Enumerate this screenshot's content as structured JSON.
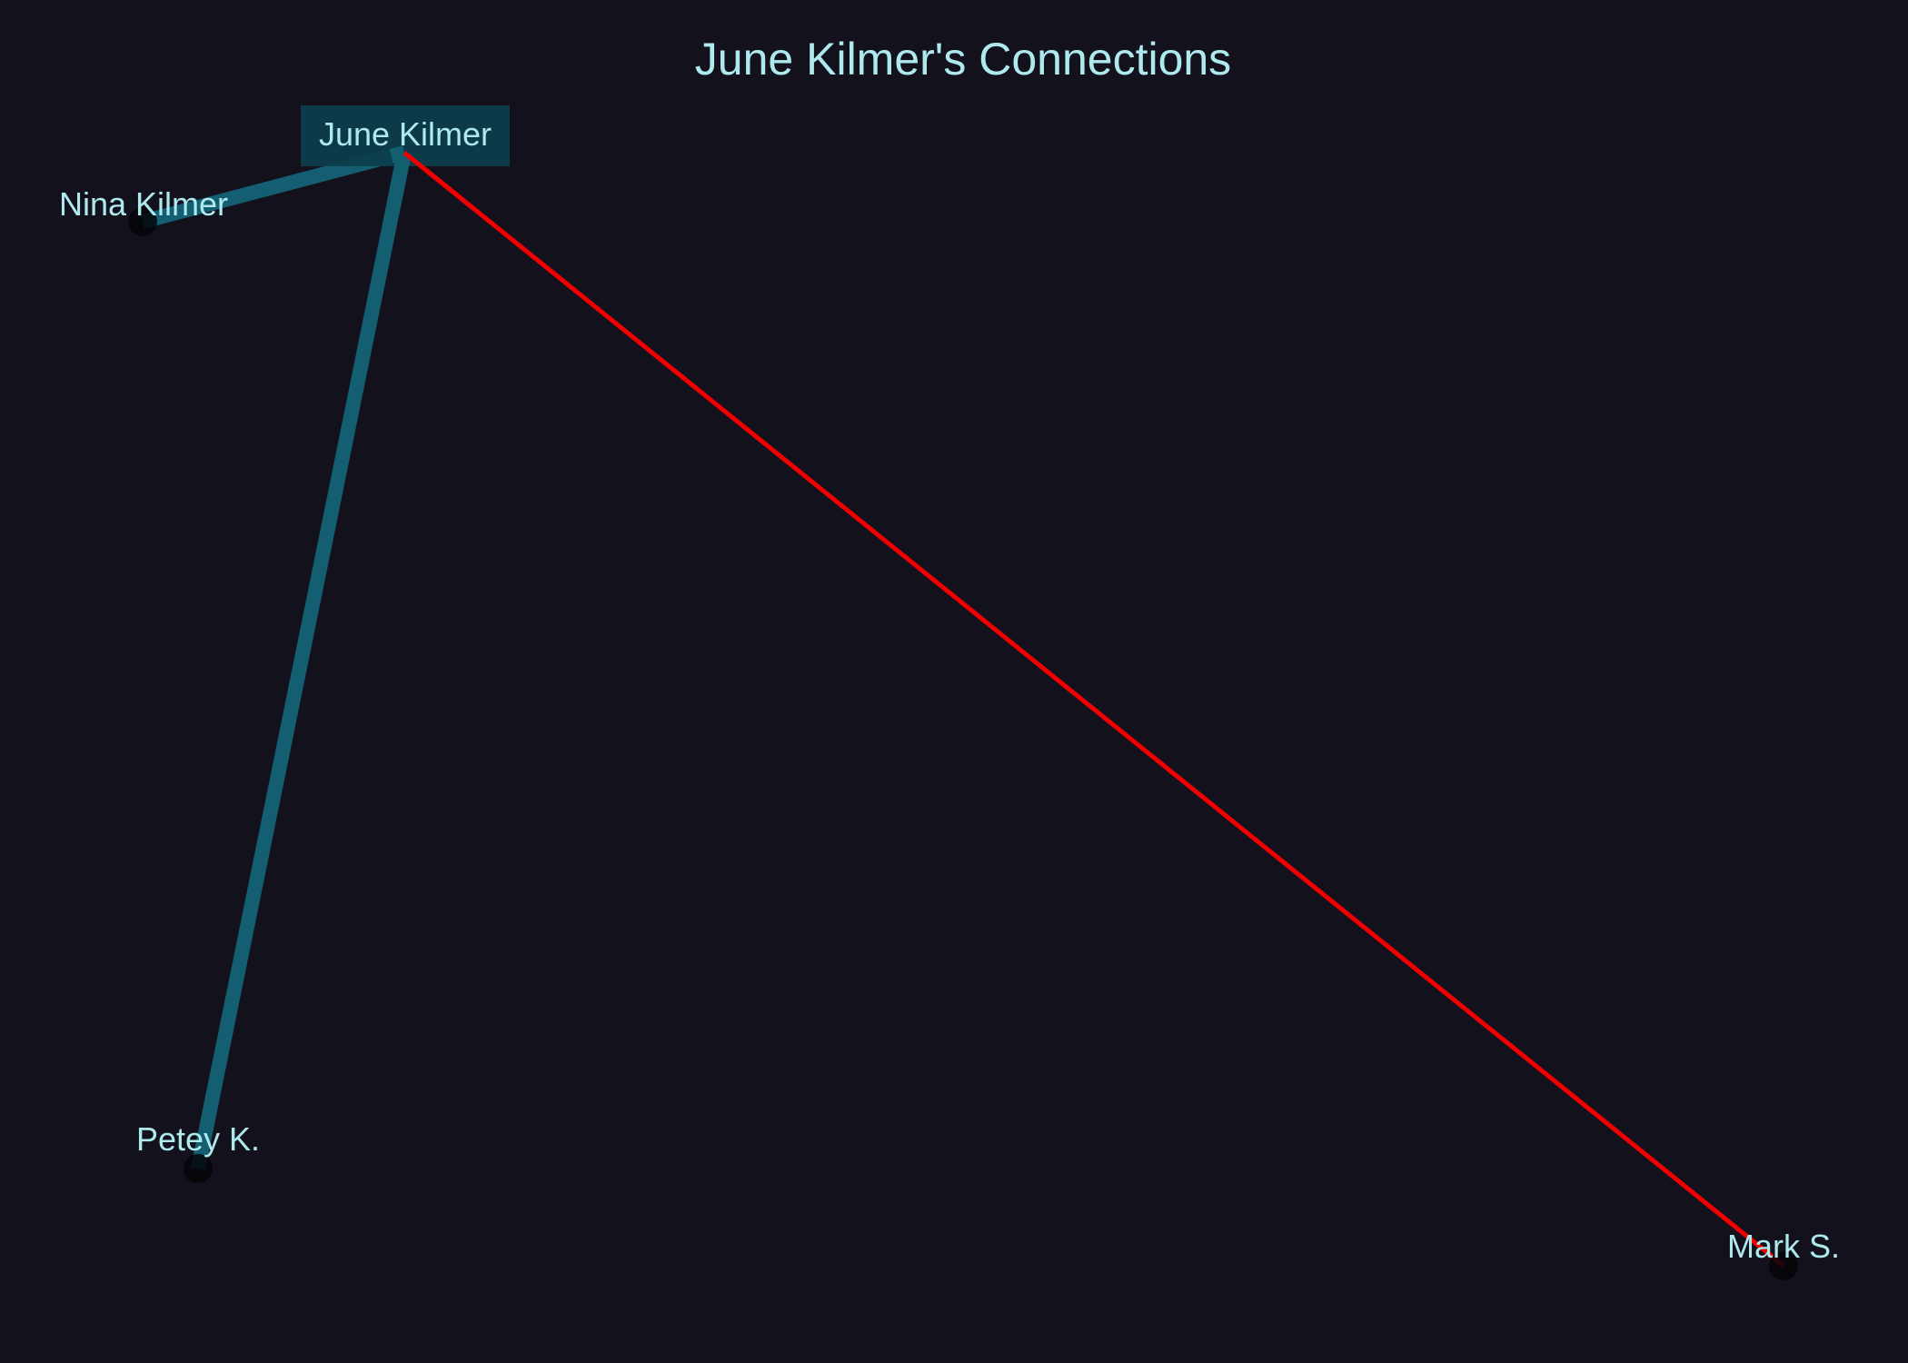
{
  "title": "June Kilmer's Connections",
  "colors": {
    "background": "#12111c",
    "text": "#aee9ee",
    "family_edge": "#135e70",
    "conflict_edge": "#f00000",
    "center_box": "#0d3e4c",
    "node_dot": "#050508"
  },
  "nodes": [
    {
      "id": "june",
      "label": "June Kilmer",
      "center": true
    },
    {
      "id": "nina",
      "label": "Nina Kilmer"
    },
    {
      "id": "petey",
      "label": "Petey K."
    },
    {
      "id": "mark",
      "label": "Mark S."
    }
  ],
  "edges": [
    {
      "source": "june",
      "target": "nina",
      "kind": "family_edge"
    },
    {
      "source": "june",
      "target": "petey",
      "kind": "family_edge"
    },
    {
      "source": "june",
      "target": "mark",
      "kind": "conflict_edge"
    }
  ]
}
